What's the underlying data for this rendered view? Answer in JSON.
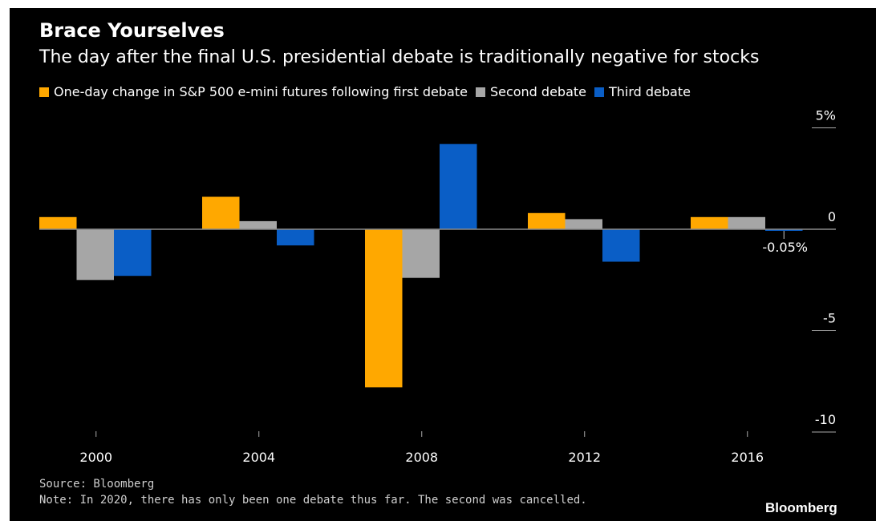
{
  "header": {
    "title": "Brace Yourselves",
    "subtitle": "The day after the final U.S. presidential debate is traditionally negative for stocks"
  },
  "footer": {
    "source": "Source: Bloomberg",
    "note": "Note: In 2020, there has only been one debate thus far. The second was cancelled.",
    "brand": "Bloomberg"
  },
  "colors": {
    "background": "#000000",
    "first": "#FFA800",
    "second": "#A6A6A6",
    "third": "#0A5EC6",
    "axis": "#888888",
    "text": "#FFFFFF"
  },
  "chart_data": {
    "type": "bar",
    "title": "Brace Yourselves",
    "subtitle": "The day after the final U.S. presidential debate is traditionally negative for stocks",
    "categories": [
      "2000",
      "2004",
      "2008",
      "2012",
      "2016"
    ],
    "series": [
      {
        "name": "One-day change in S&P 500 e-mini futures following first debate",
        "color": "#FFA800",
        "values": [
          0.6,
          1.6,
          -7.8,
          0.8,
          0.6
        ]
      },
      {
        "name": "Second debate",
        "color": "#A6A6A6",
        "values": [
          -2.5,
          0.4,
          -2.4,
          0.5,
          0.6
        ]
      },
      {
        "name": "Third debate",
        "color": "#0A5EC6",
        "values": [
          -2.3,
          -0.8,
          4.2,
          -1.6,
          -0.05
        ]
      }
    ],
    "y_ticks": [
      {
        "value": 5,
        "label": "5%"
      },
      {
        "value": 0,
        "label": "0"
      },
      {
        "value": -5,
        "label": "-5"
      },
      {
        "value": -10,
        "label": "-10"
      }
    ],
    "annotation": {
      "label": "-0.05%"
    },
    "ylim": [
      -10,
      5
    ],
    "xlabel": "",
    "ylabel": "",
    "grid": false,
    "legend_position": "top-left",
    "y_axis_position": "right"
  }
}
